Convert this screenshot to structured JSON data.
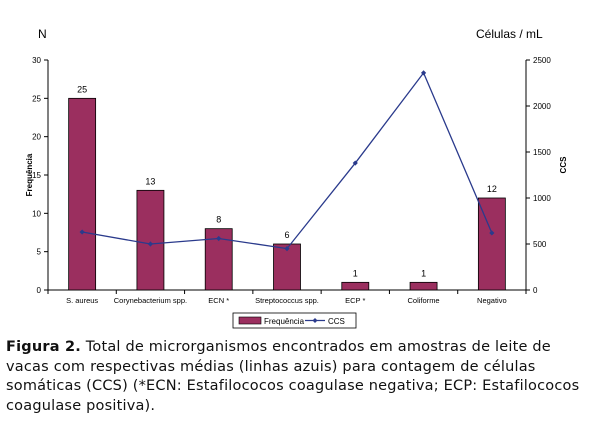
{
  "figure": {
    "left_unit": "N",
    "right_unit": "Células / mL",
    "caption_label": "Figura 2.",
    "caption_text": "Total de microrganismos encontrados em amostras de leite de vacas com respectivas médias (linhas azuis) para contagem de células somáticas (CCS) (*ECN: Estafilococos coagulase negativa; ECP: Estafilococos coagulase positiva)."
  },
  "chart_data": {
    "type": "bar",
    "categories": [
      "S. aureus",
      "Corynebacterium spp.",
      "ECN *",
      "Streptococcus spp.",
      "ECP *",
      "Coliforme",
      "Negativo"
    ],
    "series": [
      {
        "name": "Frequência",
        "type": "bar",
        "axis": "left",
        "color": "#9b2f5f",
        "values": [
          25,
          13,
          8,
          6,
          1,
          1,
          12
        ]
      },
      {
        "name": "CCS",
        "type": "line",
        "axis": "right",
        "color": "#2a3a8c",
        "values": [
          630,
          500,
          560,
          450,
          1380,
          2360,
          620
        ]
      }
    ],
    "ylabel": "Frequência",
    "y2label": "CCS",
    "ylim": [
      0,
      30
    ],
    "y2lim": [
      0,
      2500
    ],
    "yticks": [
      0,
      5,
      10,
      15,
      20,
      25,
      30
    ],
    "y2ticks": [
      0,
      500,
      1000,
      1500,
      2000,
      2500
    ],
    "legend_position": "bottom",
    "grid": false
  }
}
